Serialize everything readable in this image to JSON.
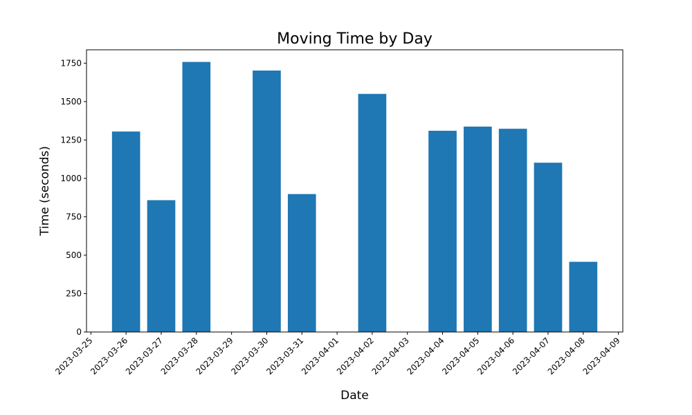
{
  "chart_data": {
    "type": "bar",
    "title": "Moving Time by Day",
    "xlabel": "Date",
    "ylabel": "Time (seconds)",
    "bar_color": "#1f77b4",
    "grid": false,
    "xlim": [
      "2023-03-24T21:00",
      "2023-04-09T03:00"
    ],
    "ylim": [
      0,
      1837
    ],
    "x_ticks": [
      "2023-03-25",
      "2023-03-26",
      "2023-03-27",
      "2023-03-28",
      "2023-03-29",
      "2023-03-30",
      "2023-03-31",
      "2023-04-01",
      "2023-04-02",
      "2023-04-03",
      "2023-04-04",
      "2023-04-05",
      "2023-04-06",
      "2023-04-07",
      "2023-04-08",
      "2023-04-09"
    ],
    "y_ticks": [
      0,
      250,
      500,
      750,
      1000,
      1250,
      1500,
      1750
    ],
    "categories": [
      "2023-03-26",
      "2023-03-27",
      "2023-03-28",
      "2023-03-30",
      "2023-03-31",
      "2023-04-02",
      "2023-04-04",
      "2023-04-05",
      "2023-04-06",
      "2023-04-07",
      "2023-04-08"
    ],
    "values": [
      1305,
      858,
      1758,
      1702,
      898,
      1550,
      1310,
      1337,
      1323,
      1102,
      457
    ]
  }
}
